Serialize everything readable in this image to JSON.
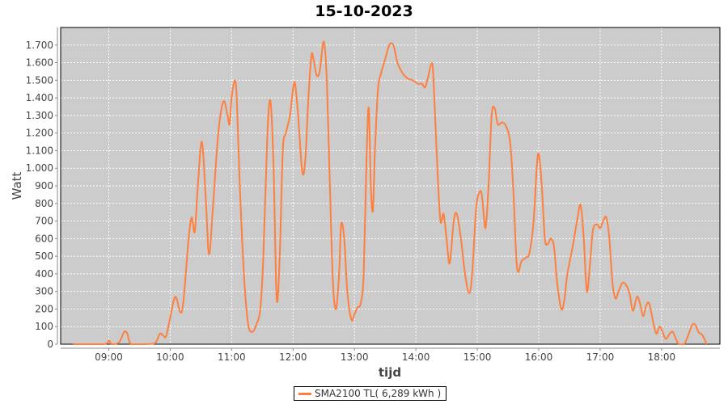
{
  "chart_data": {
    "type": "line",
    "title": "15-10-2023",
    "xlabel": "tijd",
    "ylabel": "Watt",
    "xlim": [
      "08:13",
      "18:57"
    ],
    "ylim": [
      0,
      1800
    ],
    "x_ticks": [
      "09:00",
      "10:00",
      "11:00",
      "12:00",
      "13:00",
      "14:00",
      "15:00",
      "16:00",
      "17:00",
      "18:00"
    ],
    "y_ticks": [
      0,
      100,
      200,
      300,
      400,
      500,
      600,
      700,
      800,
      900,
      1000,
      1100,
      1200,
      1300,
      1400,
      1500,
      1600,
      1700
    ],
    "y_tick_labels": [
      "0",
      "100",
      "200",
      "300",
      "400",
      "500",
      "600",
      "700",
      "800",
      "900",
      "1.000",
      "1.100",
      "1.200",
      "1.300",
      "1.400",
      "1.500",
      "1.600",
      "1.700"
    ],
    "grid": true,
    "legend_position": "bottom",
    "colors": {
      "series": "#ff7f3f",
      "plot_bg": "#cccccc",
      "grid": "#ffffff"
    },
    "series": [
      {
        "name": "SMA2100 TL( 6,289 kWh )",
        "points": [
          [
            "08:25",
            0
          ],
          [
            "08:55",
            0
          ],
          [
            "09:00",
            20
          ],
          [
            "09:03",
            0
          ],
          [
            "09:10",
            10
          ],
          [
            "09:15",
            70
          ],
          [
            "09:18",
            60
          ],
          [
            "09:22",
            0
          ],
          [
            "09:35",
            0
          ],
          [
            "09:45",
            5
          ],
          [
            "09:50",
            60
          ],
          [
            "09:53",
            50
          ],
          [
            "09:56",
            45
          ],
          [
            "10:00",
            150
          ],
          [
            "10:05",
            270
          ],
          [
            "10:10",
            180
          ],
          [
            "10:13",
            250
          ],
          [
            "10:18",
            600
          ],
          [
            "10:21",
            720
          ],
          [
            "10:24",
            640
          ],
          [
            "10:27",
            900
          ],
          [
            "10:31",
            1150
          ],
          [
            "10:35",
            800
          ],
          [
            "10:38",
            510
          ],
          [
            "10:42",
            800
          ],
          [
            "10:47",
            1200
          ],
          [
            "10:52",
            1380
          ],
          [
            "10:56",
            1300
          ],
          [
            "10:58",
            1250
          ],
          [
            "11:00",
            1400
          ],
          [
            "11:03",
            1500
          ],
          [
            "11:05",
            1400
          ],
          [
            "11:08",
            900
          ],
          [
            "11:12",
            400
          ],
          [
            "11:16",
            120
          ],
          [
            "11:20",
            70
          ],
          [
            "11:24",
            110
          ],
          [
            "11:28",
            200
          ],
          [
            "11:31",
            500
          ],
          [
            "11:35",
            1200
          ],
          [
            "11:38",
            1380
          ],
          [
            "11:41",
            1000
          ],
          [
            "11:44",
            260
          ],
          [
            "11:47",
            500
          ],
          [
            "11:50",
            1100
          ],
          [
            "11:53",
            1200
          ],
          [
            "11:57",
            1300
          ],
          [
            "12:00",
            1450
          ],
          [
            "12:02",
            1480
          ],
          [
            "12:05",
            1300
          ],
          [
            "12:09",
            980
          ],
          [
            "12:12",
            1050
          ],
          [
            "12:15",
            1400
          ],
          [
            "12:18",
            1640
          ],
          [
            "12:20",
            1620
          ],
          [
            "12:23",
            1530
          ],
          [
            "12:26",
            1550
          ],
          [
            "12:30",
            1720
          ],
          [
            "12:33",
            1500
          ],
          [
            "12:36",
            900
          ],
          [
            "12:39",
            350
          ],
          [
            "12:42",
            200
          ],
          [
            "12:45",
            400
          ],
          [
            "12:47",
            680
          ],
          [
            "12:50",
            600
          ],
          [
            "12:53",
            300
          ],
          [
            "12:57",
            140
          ],
          [
            "13:00",
            170
          ],
          [
            "13:03",
            210
          ],
          [
            "13:06",
            230
          ],
          [
            "13:09",
            400
          ],
          [
            "13:12",
            1100
          ],
          [
            "13:14",
            1340
          ],
          [
            "13:16",
            900
          ],
          [
            "13:18",
            760
          ],
          [
            "13:20",
            1100
          ],
          [
            "13:23",
            1450
          ],
          [
            "13:26",
            1540
          ],
          [
            "13:30",
            1620
          ],
          [
            "13:34",
            1700
          ],
          [
            "13:38",
            1700
          ],
          [
            "13:42",
            1600
          ],
          [
            "13:47",
            1540
          ],
          [
            "13:52",
            1510
          ],
          [
            "13:57",
            1500
          ],
          [
            "14:02",
            1480
          ],
          [
            "14:06",
            1480
          ],
          [
            "14:09",
            1460
          ],
          [
            "14:12",
            1520
          ],
          [
            "14:15",
            1590
          ],
          [
            "14:17",
            1530
          ],
          [
            "14:21",
            1000
          ],
          [
            "14:24",
            700
          ],
          [
            "14:27",
            740
          ],
          [
            "14:30",
            600
          ],
          [
            "14:33",
            460
          ],
          [
            "14:37",
            700
          ],
          [
            "14:40",
            740
          ],
          [
            "14:44",
            600
          ],
          [
            "14:48",
            400
          ],
          [
            "14:52",
            290
          ],
          [
            "14:55",
            400
          ],
          [
            "14:59",
            780
          ],
          [
            "15:03",
            870
          ],
          [
            "15:05",
            820
          ],
          [
            "15:08",
            660
          ],
          [
            "15:11",
            900
          ],
          [
            "15:14",
            1300
          ],
          [
            "15:17",
            1340
          ],
          [
            "15:20",
            1250
          ],
          [
            "15:24",
            1260
          ],
          [
            "15:28",
            1240
          ],
          [
            "15:32",
            1150
          ],
          [
            "15:35",
            900
          ],
          [
            "15:38",
            500
          ],
          [
            "15:40",
            410
          ],
          [
            "15:43",
            470
          ],
          [
            "15:47",
            490
          ],
          [
            "15:51",
            520
          ],
          [
            "15:55",
            700
          ],
          [
            "15:58",
            1000
          ],
          [
            "16:00",
            1080
          ],
          [
            "16:03",
            900
          ],
          [
            "16:06",
            600
          ],
          [
            "16:09",
            570
          ],
          [
            "16:12",
            600
          ],
          [
            "16:15",
            550
          ],
          [
            "16:18",
            350
          ],
          [
            "16:22",
            200
          ],
          [
            "16:25",
            250
          ],
          [
            "16:28",
            400
          ],
          [
            "16:33",
            550
          ],
          [
            "16:38",
            720
          ],
          [
            "16:41",
            790
          ],
          [
            "16:44",
            600
          ],
          [
            "16:47",
            300
          ],
          [
            "16:50",
            450
          ],
          [
            "16:53",
            650
          ],
          [
            "16:57",
            680
          ],
          [
            "17:00",
            660
          ],
          [
            "17:03",
            700
          ],
          [
            "17:06",
            720
          ],
          [
            "17:09",
            600
          ],
          [
            "17:12",
            350
          ],
          [
            "17:15",
            260
          ],
          [
            "17:18",
            300
          ],
          [
            "17:22",
            350
          ],
          [
            "17:26",
            330
          ],
          [
            "17:29",
            280
          ],
          [
            "17:32",
            190
          ],
          [
            "17:36",
            270
          ],
          [
            "17:39",
            230
          ],
          [
            "17:42",
            160
          ],
          [
            "17:45",
            220
          ],
          [
            "17:48",
            230
          ],
          [
            "17:52",
            120
          ],
          [
            "17:55",
            60
          ],
          [
            "17:58",
            100
          ],
          [
            "18:01",
            70
          ],
          [
            "18:04",
            30
          ],
          [
            "18:08",
            60
          ],
          [
            "18:11",
            70
          ],
          [
            "18:14",
            30
          ],
          [
            "18:17",
            0
          ],
          [
            "18:22",
            0
          ],
          [
            "18:26",
            50
          ],
          [
            "18:30",
            110
          ],
          [
            "18:33",
            110
          ],
          [
            "18:36",
            70
          ],
          [
            "18:40",
            50
          ],
          [
            "18:44",
            0
          ]
        ]
      }
    ]
  }
}
